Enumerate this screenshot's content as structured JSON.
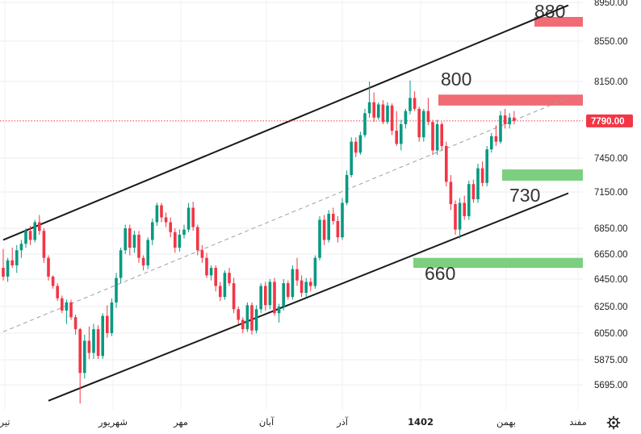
{
  "chart_data": {
    "type": "candlestick",
    "y_axis": {
      "position": "right",
      "ticks": [
        5695,
        5875,
        6050,
        6250,
        6450,
        6650,
        6850,
        7150,
        7450,
        8150,
        8550,
        8950
      ],
      "tick_labels": [
        "5695.00",
        "5875.00",
        "6050.00",
        "6250.00",
        "6450.00",
        "6650.00",
        "6850.00",
        "7150.00",
        "7450.00",
        "8150.00",
        "8550.00",
        "8950.00"
      ]
    },
    "x_axis": {
      "tick_labels": [
        "تیر",
        "شهریور",
        "مهر",
        "آبان",
        "آذر",
        "1402",
        "بهمن",
        "مفند"
      ],
      "bold_labels": [
        "1402"
      ]
    },
    "current_price": {
      "value": 7790,
      "label": "7790.00",
      "color": "#f23645"
    },
    "colors": {
      "up": "#089981",
      "down": "#f23645",
      "channel": "#1a1a1a",
      "midline": "#9aa0a6",
      "resistance_zone": "#f06b74",
      "support_zone": "#7ccf80"
    },
    "zones": [
      {
        "label": "880",
        "kind": "resistance",
        "price_low": 8700,
        "price_high": 8800
      },
      {
        "label": "800",
        "kind": "resistance",
        "price_low": 7930,
        "price_high": 8030
      },
      {
        "label": "730",
        "kind": "support",
        "price_low": 7250,
        "price_high": 7350
      },
      {
        "label": "660",
        "kind": "support",
        "price_low": 6540,
        "price_high": 6620
      }
    ],
    "channel": {
      "upper": [
        {
          "x": 0,
          "y": 6760
        },
        {
          "x": 125,
          "y": 8920
        }
      ],
      "lower": [
        {
          "x": 10,
          "y": 5580
        },
        {
          "x": 125,
          "y": 7140
        }
      ],
      "mid": [
        {
          "x": 0,
          "y": 6060
        },
        {
          "x": 125,
          "y": 8000
        }
      ]
    },
    "candles": [
      [
        6540,
        6690,
        6440,
        6470
      ],
      [
        6470,
        6620,
        6430,
        6600
      ],
      [
        6600,
        6700,
        6540,
        6560
      ],
      [
        6560,
        6720,
        6500,
        6680
      ],
      [
        6680,
        6760,
        6620,
        6730
      ],
      [
        6730,
        6850,
        6700,
        6830
      ],
      [
        6830,
        6870,
        6720,
        6760
      ],
      [
        6760,
        6920,
        6740,
        6900
      ],
      [
        6900,
        6960,
        6800,
        6830
      ],
      [
        6830,
        6850,
        6580,
        6620
      ],
      [
        6620,
        6640,
        6440,
        6470
      ],
      [
        6470,
        6480,
        6380,
        6400
      ],
      [
        6400,
        6420,
        6290,
        6310
      ],
      [
        6310,
        6330,
        6200,
        6220
      ],
      [
        6220,
        6300,
        6120,
        6280
      ],
      [
        6280,
        6300,
        6150,
        6170
      ],
      [
        6170,
        6190,
        6040,
        6080
      ],
      [
        6080,
        6090,
        5560,
        5780
      ],
      [
        5780,
        6040,
        5740,
        6000
      ],
      [
        6000,
        6100,
        5880,
        5920
      ],
      [
        5920,
        6120,
        5880,
        6080
      ],
      [
        6080,
        6110,
        5880,
        5900
      ],
      [
        5900,
        6200,
        5880,
        6180
      ],
      [
        6180,
        6260,
        6020,
        6050
      ],
      [
        6050,
        6310,
        6030,
        6280
      ],
      [
        6280,
        6500,
        6240,
        6460
      ],
      [
        6460,
        6700,
        6420,
        6680
      ],
      [
        6680,
        6880,
        6650,
        6850
      ],
      [
        6850,
        6880,
        6640,
        6700
      ],
      [
        6700,
        6830,
        6660,
        6800
      ],
      [
        6800,
        6830,
        6580,
        6620
      ],
      [
        6620,
        6640,
        6520,
        6560
      ],
      [
        6560,
        6780,
        6530,
        6760
      ],
      [
        6760,
        6930,
        6720,
        6900
      ],
      [
        6900,
        7060,
        6870,
        7040
      ],
      [
        7040,
        7060,
        6900,
        6940
      ],
      [
        6940,
        6980,
        6860,
        6900
      ],
      [
        6900,
        6940,
        6780,
        6820
      ],
      [
        6820,
        6850,
        6660,
        6700
      ],
      [
        6700,
        6840,
        6670,
        6800
      ],
      [
        6800,
        6880,
        6770,
        6840
      ],
      [
        6840,
        7060,
        6820,
        7020
      ],
      [
        7020,
        7070,
        6830,
        6860
      ],
      [
        6860,
        6880,
        6640,
        6680
      ],
      [
        6680,
        6720,
        6580,
        6620
      ],
      [
        6620,
        6660,
        6460,
        6480
      ],
      [
        6480,
        6560,
        6440,
        6540
      ],
      [
        6540,
        6560,
        6360,
        6400
      ],
      [
        6400,
        6430,
        6290,
        6320
      ],
      [
        6320,
        6520,
        6300,
        6500
      ],
      [
        6500,
        6540,
        6400,
        6420
      ],
      [
        6420,
        6460,
        6200,
        6230
      ],
      [
        6230,
        6250,
        6120,
        6150
      ],
      [
        6150,
        6170,
        6050,
        6080
      ],
      [
        6080,
        6280,
        6060,
        6260
      ],
      [
        6260,
        6280,
        6040,
        6070
      ],
      [
        6070,
        6260,
        6050,
        6230
      ],
      [
        6230,
        6420,
        6200,
        6400
      ],
      [
        6400,
        6430,
        6220,
        6260
      ],
      [
        6260,
        6450,
        6230,
        6430
      ],
      [
        6430,
        6460,
        6180,
        6200
      ],
      [
        6200,
        6270,
        6130,
        6250
      ],
      [
        6250,
        6450,
        6220,
        6420
      ],
      [
        6420,
        6440,
        6300,
        6320
      ],
      [
        6320,
        6560,
        6300,
        6530
      ],
      [
        6530,
        6620,
        6400,
        6440
      ],
      [
        6440,
        6480,
        6320,
        6350
      ],
      [
        6350,
        6460,
        6320,
        6430
      ],
      [
        6430,
        6460,
        6360,
        6400
      ],
      [
        6400,
        6640,
        6380,
        6620
      ],
      [
        6620,
        6950,
        6600,
        6920
      ],
      [
        6920,
        6960,
        6720,
        6760
      ],
      [
        6760,
        7000,
        6740,
        6970
      ],
      [
        6970,
        7020,
        6880,
        6910
      ],
      [
        6910,
        6950,
        6740,
        6780
      ],
      [
        6780,
        7100,
        6760,
        7060
      ],
      [
        7060,
        7340,
        7040,
        7300
      ],
      [
        7300,
        7640,
        7280,
        7600
      ],
      [
        7600,
        7640,
        7460,
        7500
      ],
      [
        7500,
        7690,
        7480,
        7660
      ],
      [
        7660,
        7900,
        7640,
        7860
      ],
      [
        7860,
        8150,
        7820,
        7960
      ],
      [
        7960,
        8050,
        7780,
        7820
      ],
      [
        7820,
        7960,
        7800,
        7940
      ],
      [
        7940,
        7980,
        7760,
        7780
      ],
      [
        7780,
        7960,
        7760,
        7930
      ],
      [
        7930,
        7950,
        7660,
        7700
      ],
      [
        7700,
        7880,
        7560,
        7580
      ],
      [
        7580,
        7800,
        7520,
        7760
      ],
      [
        7760,
        7900,
        7720,
        7880
      ],
      [
        7880,
        8160,
        7850,
        8000
      ],
      [
        8000,
        8060,
        7880,
        7900
      ],
      [
        7900,
        7920,
        7600,
        7640
      ],
      [
        7640,
        7900,
        7600,
        7880
      ],
      [
        7880,
        8000,
        7750,
        7780
      ],
      [
        7780,
        7800,
        7480,
        7520
      ],
      [
        7520,
        7800,
        7480,
        7760
      ],
      [
        7760,
        7780,
        7520,
        7560
      ],
      [
        7560,
        7600,
        7200,
        7240
      ],
      [
        7240,
        7300,
        7000,
        7050
      ],
      [
        7050,
        7080,
        6800,
        6840
      ],
      [
        6840,
        7100,
        6770,
        7060
      ],
      [
        7060,
        7120,
        6920,
        6950
      ],
      [
        6950,
        7250,
        6920,
        7220
      ],
      [
        7220,
        7260,
        7060,
        7090
      ],
      [
        7090,
        7400,
        7060,
        7360
      ],
      [
        7360,
        7420,
        7200,
        7230
      ],
      [
        7230,
        7560,
        7200,
        7530
      ],
      [
        7530,
        7680,
        7500,
        7650
      ],
      [
        7650,
        7750,
        7560,
        7600
      ],
      [
        7600,
        7880,
        7580,
        7840
      ],
      [
        7840,
        7900,
        7720,
        7760
      ],
      [
        7760,
        7860,
        7720,
        7820
      ],
      [
        7820,
        7880,
        7760,
        7790
      ]
    ]
  }
}
